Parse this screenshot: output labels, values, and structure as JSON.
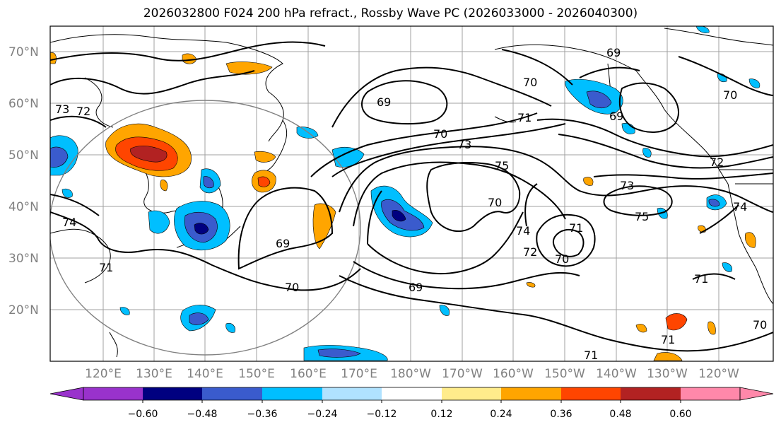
{
  "title": "2026032800 F024 200 hPa refract., Rossby Wave PC (2026033000 - 2026040300)",
  "lat_labels": [
    "70°N",
    "60°N",
    "50°N",
    "40°N",
    "30°N",
    "20°N"
  ],
  "lon_labels": [
    "120°E",
    "130°E",
    "140°E",
    "150°E",
    "160°E",
    "170°E",
    "180°W",
    "170°W",
    "160°W",
    "150°W",
    "140°W",
    "130°W",
    "120°W"
  ],
  "colorbar": {
    "colors": [
      "#9932cc",
      "#000080",
      "#3a5bcd",
      "#00bfff",
      "#b0e2ff",
      "#ffffff",
      "#ffec8b",
      "#ffa500",
      "#ff4500",
      "#b22222",
      "#ff88aa"
    ],
    "labels": [
      "−0.60",
      "−0.48",
      "−0.36",
      "−0.24",
      "−0.12",
      "0.12",
      "0.24",
      "0.36",
      "0.48",
      "0.60"
    ]
  },
  "contour_labels": [
    "73",
    "72",
    "74",
    "71",
    "69",
    "70",
    "69",
    "70",
    "73",
    "75",
    "70",
    "71",
    "69",
    "69",
    "70",
    "71",
    "72",
    "70",
    "74",
    "73",
    "75",
    "74",
    "71",
    "71",
    "71",
    "70",
    "72",
    "70",
    "69"
  ]
}
